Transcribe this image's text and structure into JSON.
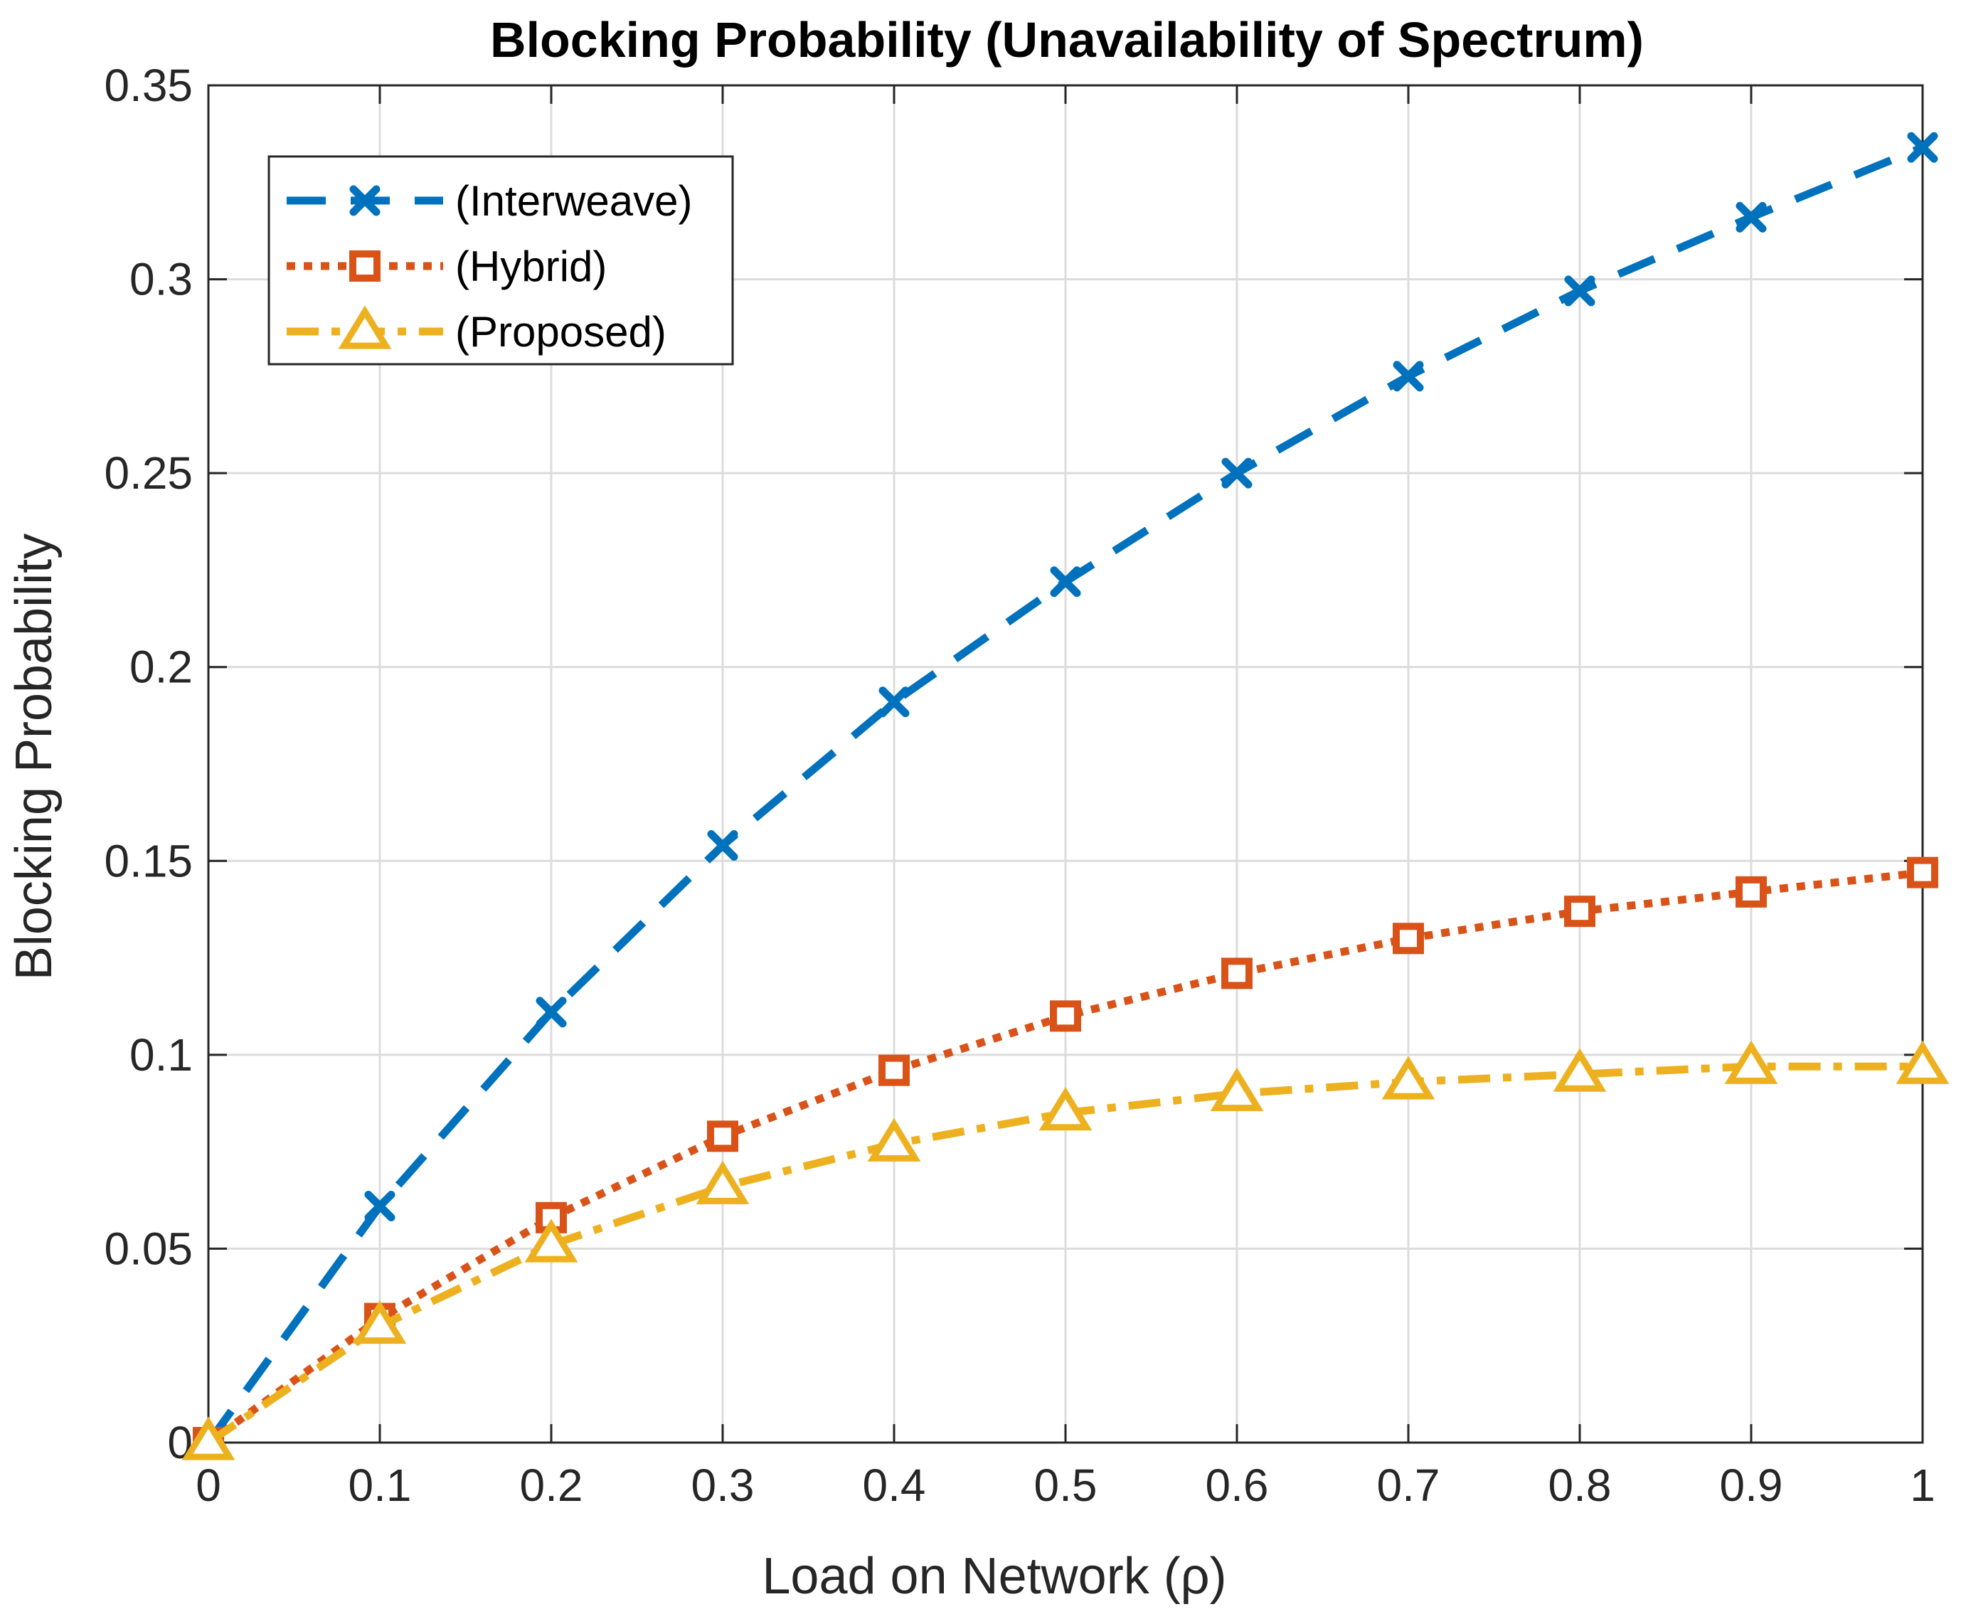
{
  "chart_data": {
    "type": "line",
    "title": "Blocking Probability (Unavailability of Spectrum)",
    "xlabel": "Load on Network (ρ)",
    "ylabel": "Blocking Probability",
    "xlim": [
      0,
      1
    ],
    "ylim": [
      0,
      0.35
    ],
    "x": [
      0,
      0.1,
      0.2,
      0.3,
      0.4,
      0.5,
      0.6,
      0.7,
      0.8,
      0.9,
      1
    ],
    "xticks": [
      "0",
      "0.1",
      "0.2",
      "0.3",
      "0.4",
      "0.5",
      "0.6",
      "0.7",
      "0.8",
      "0.9",
      "1"
    ],
    "xtick_values": [
      0,
      0.1,
      0.2,
      0.3,
      0.4,
      0.5,
      0.6,
      0.7,
      0.8,
      0.9,
      1
    ],
    "yticks": [
      "0",
      "0.05",
      "0.1",
      "0.15",
      "0.2",
      "0.25",
      "0.3",
      "0.35"
    ],
    "ytick_values": [
      0,
      0.05,
      0.1,
      0.15,
      0.2,
      0.25,
      0.3,
      0.35
    ],
    "grid": true,
    "legend_position": "top-left",
    "series": [
      {
        "name": "(Interweave)",
        "color": "#0072BD",
        "marker": "x",
        "line_style": "dashed",
        "values": [
          0,
          0.061,
          0.111,
          0.154,
          0.191,
          0.222,
          0.25,
          0.275,
          0.297,
          0.316,
          0.334
        ]
      },
      {
        "name": "(Hybrid)",
        "color": "#D95319",
        "marker": "square",
        "line_style": "dotted",
        "values": [
          0,
          0.032,
          0.058,
          0.079,
          0.096,
          0.11,
          0.121,
          0.13,
          0.137,
          0.142,
          0.147
        ]
      },
      {
        "name": "(Proposed)",
        "color": "#EDB120",
        "marker": "triangle",
        "line_style": "dash-dot",
        "values": [
          0,
          0.03,
          0.051,
          0.066,
          0.077,
          0.085,
          0.09,
          0.093,
          0.095,
          0.097,
          0.097
        ]
      }
    ]
  }
}
